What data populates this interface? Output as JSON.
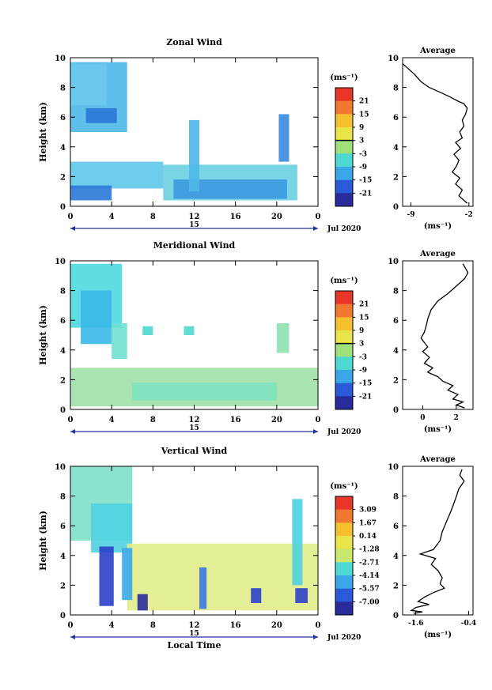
{
  "chart_data": [
    {
      "type": "heatmap",
      "title": "Zonal Wind",
      "ylabel": "Height (km)",
      "xticks": [
        "0",
        "4",
        "8",
        "12",
        "16",
        "20",
        "0"
      ],
      "yticks": [
        "0",
        "2",
        "4",
        "6",
        "8",
        "10"
      ],
      "ylim": [
        0,
        10
      ],
      "date_label": "15",
      "month_label": "Jul 2020",
      "colorbar": {
        "unit": "(ms⁻¹)",
        "ticks": [
          "21",
          "15",
          "9",
          "3",
          "-3",
          "-9",
          "-15",
          "-21"
        ],
        "colors": [
          "#e8352a",
          "#f07830",
          "#f5c030",
          "#e8e44a",
          "#9ee07a",
          "#4fd8d0",
          "#3aa8e8",
          "#2a5ad8",
          "#2a2a9a"
        ],
        "marker_index": 4
      },
      "regions": [
        {
          "x": [
            0,
            5.5
          ],
          "y": [
            5.0,
            9.7
          ],
          "color": "#4fb8e8"
        },
        {
          "x": [
            0,
            3.5
          ],
          "y": [
            6.8,
            9.6
          ],
          "color": "#6ec8f0"
        },
        {
          "x": [
            1.5,
            4.5
          ],
          "y": [
            5.6,
            6.6
          ],
          "color": "#2a78d8"
        },
        {
          "x": [
            0,
            9
          ],
          "y": [
            1.2,
            3.0
          ],
          "color": "#5ec8e8"
        },
        {
          "x": [
            0,
            4
          ],
          "y": [
            0.4,
            1.4
          ],
          "color": "#2a78d8"
        },
        {
          "x": [
            9,
            22
          ],
          "y": [
            0.4,
            2.8
          ],
          "color": "#6ad0e0"
        },
        {
          "x": [
            10,
            21
          ],
          "y": [
            0.5,
            1.8
          ],
          "color": "#3a98e0"
        },
        {
          "x": [
            11.5,
            12.5
          ],
          "y": [
            1.0,
            5.8
          ],
          "color": "#4fb8e8"
        },
        {
          "x": [
            20.2,
            21.2
          ],
          "y": [
            3.0,
            6.2
          ],
          "color": "#3a88e0"
        }
      ],
      "profile": {
        "title": "Average",
        "xlabel": "(ms⁻¹)",
        "xticks": [
          "-9",
          "-2"
        ],
        "xlim": [
          -10,
          -1.5
        ],
        "x": [
          -10,
          -9.4,
          -8.6,
          -7.8,
          -6.8,
          -5.6,
          -4.4,
          -3.4,
          -2.6,
          -2.2,
          -2.4,
          -2.8,
          -2.6,
          -3.1,
          -2.8,
          -3.6,
          -3.0,
          -3.8,
          -3.2,
          -3.5,
          -4.0,
          -3.1,
          -3.6,
          -2.8,
          -3.2,
          -2.6,
          -2.2
        ],
        "y": [
          9.6,
          9.3,
          8.9,
          8.4,
          8.0,
          7.7,
          7.4,
          7.1,
          6.9,
          6.6,
          6.2,
          5.8,
          5.4,
          5.0,
          4.6,
          4.3,
          3.9,
          3.5,
          3.1,
          2.7,
          2.3,
          1.9,
          1.5,
          1.1,
          0.7,
          0.4,
          0.2
        ]
      }
    },
    {
      "type": "heatmap",
      "title": "Meridional Wind",
      "ylabel": "Height (km)",
      "xticks": [
        "0",
        "4",
        "8",
        "12",
        "16",
        "20",
        "0"
      ],
      "yticks": [
        "0",
        "2",
        "4",
        "6",
        "8",
        "10"
      ],
      "ylim": [
        0,
        10
      ],
      "date_label": "15",
      "month_label": "Jul 2020",
      "colorbar": {
        "unit": "(ms⁻¹)",
        "ticks": [
          "21",
          "15",
          "9",
          "3",
          "-3",
          "-9",
          "-15",
          "-21"
        ],
        "colors": [
          "#e8352a",
          "#f07830",
          "#f5c030",
          "#e8e44a",
          "#9ee07a",
          "#4fd8d0",
          "#3aa8e8",
          "#2a5ad8",
          "#2a2a9a"
        ],
        "marker_index": 4
      },
      "regions": [
        {
          "x": [
            0,
            5
          ],
          "y": [
            5.5,
            9.8
          ],
          "color": "#4fd8e0"
        },
        {
          "x": [
            1,
            4
          ],
          "y": [
            4.4,
            8.0
          ],
          "color": "#3ab8e8"
        },
        {
          "x": [
            4,
            5.5
          ],
          "y": [
            3.4,
            5.8
          ],
          "color": "#6ee0d0"
        },
        {
          "x": [
            7,
            8
          ],
          "y": [
            5.0,
            5.6
          ],
          "color": "#4fd8d0"
        },
        {
          "x": [
            11,
            12
          ],
          "y": [
            5.0,
            5.6
          ],
          "color": "#4fd8d0"
        },
        {
          "x": [
            0,
            24
          ],
          "y": [
            0.2,
            2.8
          ],
          "color": "#9ee0a8"
        },
        {
          "x": [
            6,
            20
          ],
          "y": [
            0.6,
            1.8
          ],
          "color": "#7ee0c0"
        },
        {
          "x": [
            20,
            21.2
          ],
          "y": [
            3.8,
            5.8
          ],
          "color": "#8ee0b0"
        }
      ],
      "profile": {
        "title": "Average",
        "xlabel": "(ms⁻¹)",
        "xticks": [
          "0",
          "2"
        ],
        "xlim": [
          -1.2,
          3.0
        ],
        "x": [
          2.4,
          2.7,
          2.5,
          2.0,
          1.5,
          0.9,
          0.5,
          0.3,
          0.2,
          0.1,
          -0.1,
          0.1,
          0.3,
          0.0,
          0.4,
          0.1,
          0.6,
          0.3,
          0.9,
          1.2,
          1.8,
          1.5,
          2.1,
          1.8,
          2.4,
          2.0,
          2.5
        ],
        "y": [
          9.8,
          9.2,
          8.8,
          8.3,
          7.8,
          7.3,
          6.7,
          6.1,
          5.6,
          5.2,
          4.8,
          4.5,
          4.2,
          3.9,
          3.5,
          3.1,
          2.8,
          2.5,
          2.2,
          1.9,
          1.6,
          1.3,
          1.0,
          0.7,
          0.5,
          0.3,
          0.1
        ]
      }
    },
    {
      "type": "heatmap",
      "title": "Vertical Wind",
      "ylabel": "Height (km)",
      "xlabel": "Local Time",
      "xticks": [
        "0",
        "4",
        "8",
        "12",
        "16",
        "20",
        "0"
      ],
      "yticks": [
        "0",
        "2",
        "4",
        "6",
        "8",
        "10"
      ],
      "ylim": [
        0,
        10
      ],
      "date_label": "15",
      "month_label": "Jul 2020",
      "colorbar": {
        "unit": "(ms⁻¹)",
        "ticks": [
          "3.09",
          "1.67",
          "0.14",
          "-1.28",
          "-2.71",
          "-4.14",
          "-5.57",
          "-7.00"
        ],
        "colors": [
          "#e8352a",
          "#f07830",
          "#f5c030",
          "#e8e44a",
          "#c8e870",
          "#4fd8d0",
          "#3aa8e8",
          "#2a5ad8",
          "#2a2a9a"
        ],
        "marker_index": -1
      },
      "regions": [
        {
          "x": [
            0,
            6
          ],
          "y": [
            5.0,
            10.0
          ],
          "color": "#7ee0c8"
        },
        {
          "x": [
            2,
            6
          ],
          "y": [
            4.2,
            7.5
          ],
          "color": "#4fd0e0"
        },
        {
          "x": [
            5.5,
            24
          ],
          "y": [
            0.3,
            4.8
          ],
          "color": "#e0ec8a"
        },
        {
          "x": [
            2.8,
            4.2
          ],
          "y": [
            0.6,
            4.6
          ],
          "color": "#2a40c8"
        },
        {
          "x": [
            5,
            6
          ],
          "y": [
            1.0,
            4.5
          ],
          "color": "#3aa8e8"
        },
        {
          "x": [
            6.5,
            7.5
          ],
          "y": [
            0.3,
            1.4
          ],
          "color": "#2a2a9a"
        },
        {
          "x": [
            12.5,
            13.2
          ],
          "y": [
            0.4,
            3.2
          ],
          "color": "#3a78e0"
        },
        {
          "x": [
            17.5,
            18.5
          ],
          "y": [
            0.8,
            1.8
          ],
          "color": "#2a40c8"
        },
        {
          "x": [
            21.8,
            23.0
          ],
          "y": [
            0.8,
            1.8
          ],
          "color": "#2a40c8"
        },
        {
          "x": [
            21.5,
            22.5
          ],
          "y": [
            2.0,
            7.8
          ],
          "color": "#4fd0e0"
        }
      ],
      "profile": {
        "title": "Average",
        "xlabel": "(ms⁻¹)",
        "xticks": [
          "-1.6",
          "-0.4"
        ],
        "xlim": [
          -1.9,
          -0.3
        ],
        "x": [
          -0.55,
          -0.6,
          -0.5,
          -0.62,
          -0.7,
          -0.8,
          -0.9,
          -1.0,
          -1.05,
          -1.2,
          -1.5,
          -1.15,
          -1.25,
          -1.1,
          -1.0,
          -1.05,
          -0.95,
          -1.2,
          -1.4,
          -1.55,
          -1.3,
          -1.6,
          -1.7,
          -1.45,
          -1.65
        ],
        "y": [
          9.8,
          9.4,
          9.0,
          8.5,
          7.8,
          7.0,
          6.3,
          5.6,
          5.0,
          4.4,
          4.1,
          3.8,
          3.4,
          3.0,
          2.5,
          2.1,
          1.8,
          1.5,
          1.2,
          0.9,
          0.7,
          0.5,
          0.3,
          0.2,
          0.1
        ]
      }
    }
  ]
}
